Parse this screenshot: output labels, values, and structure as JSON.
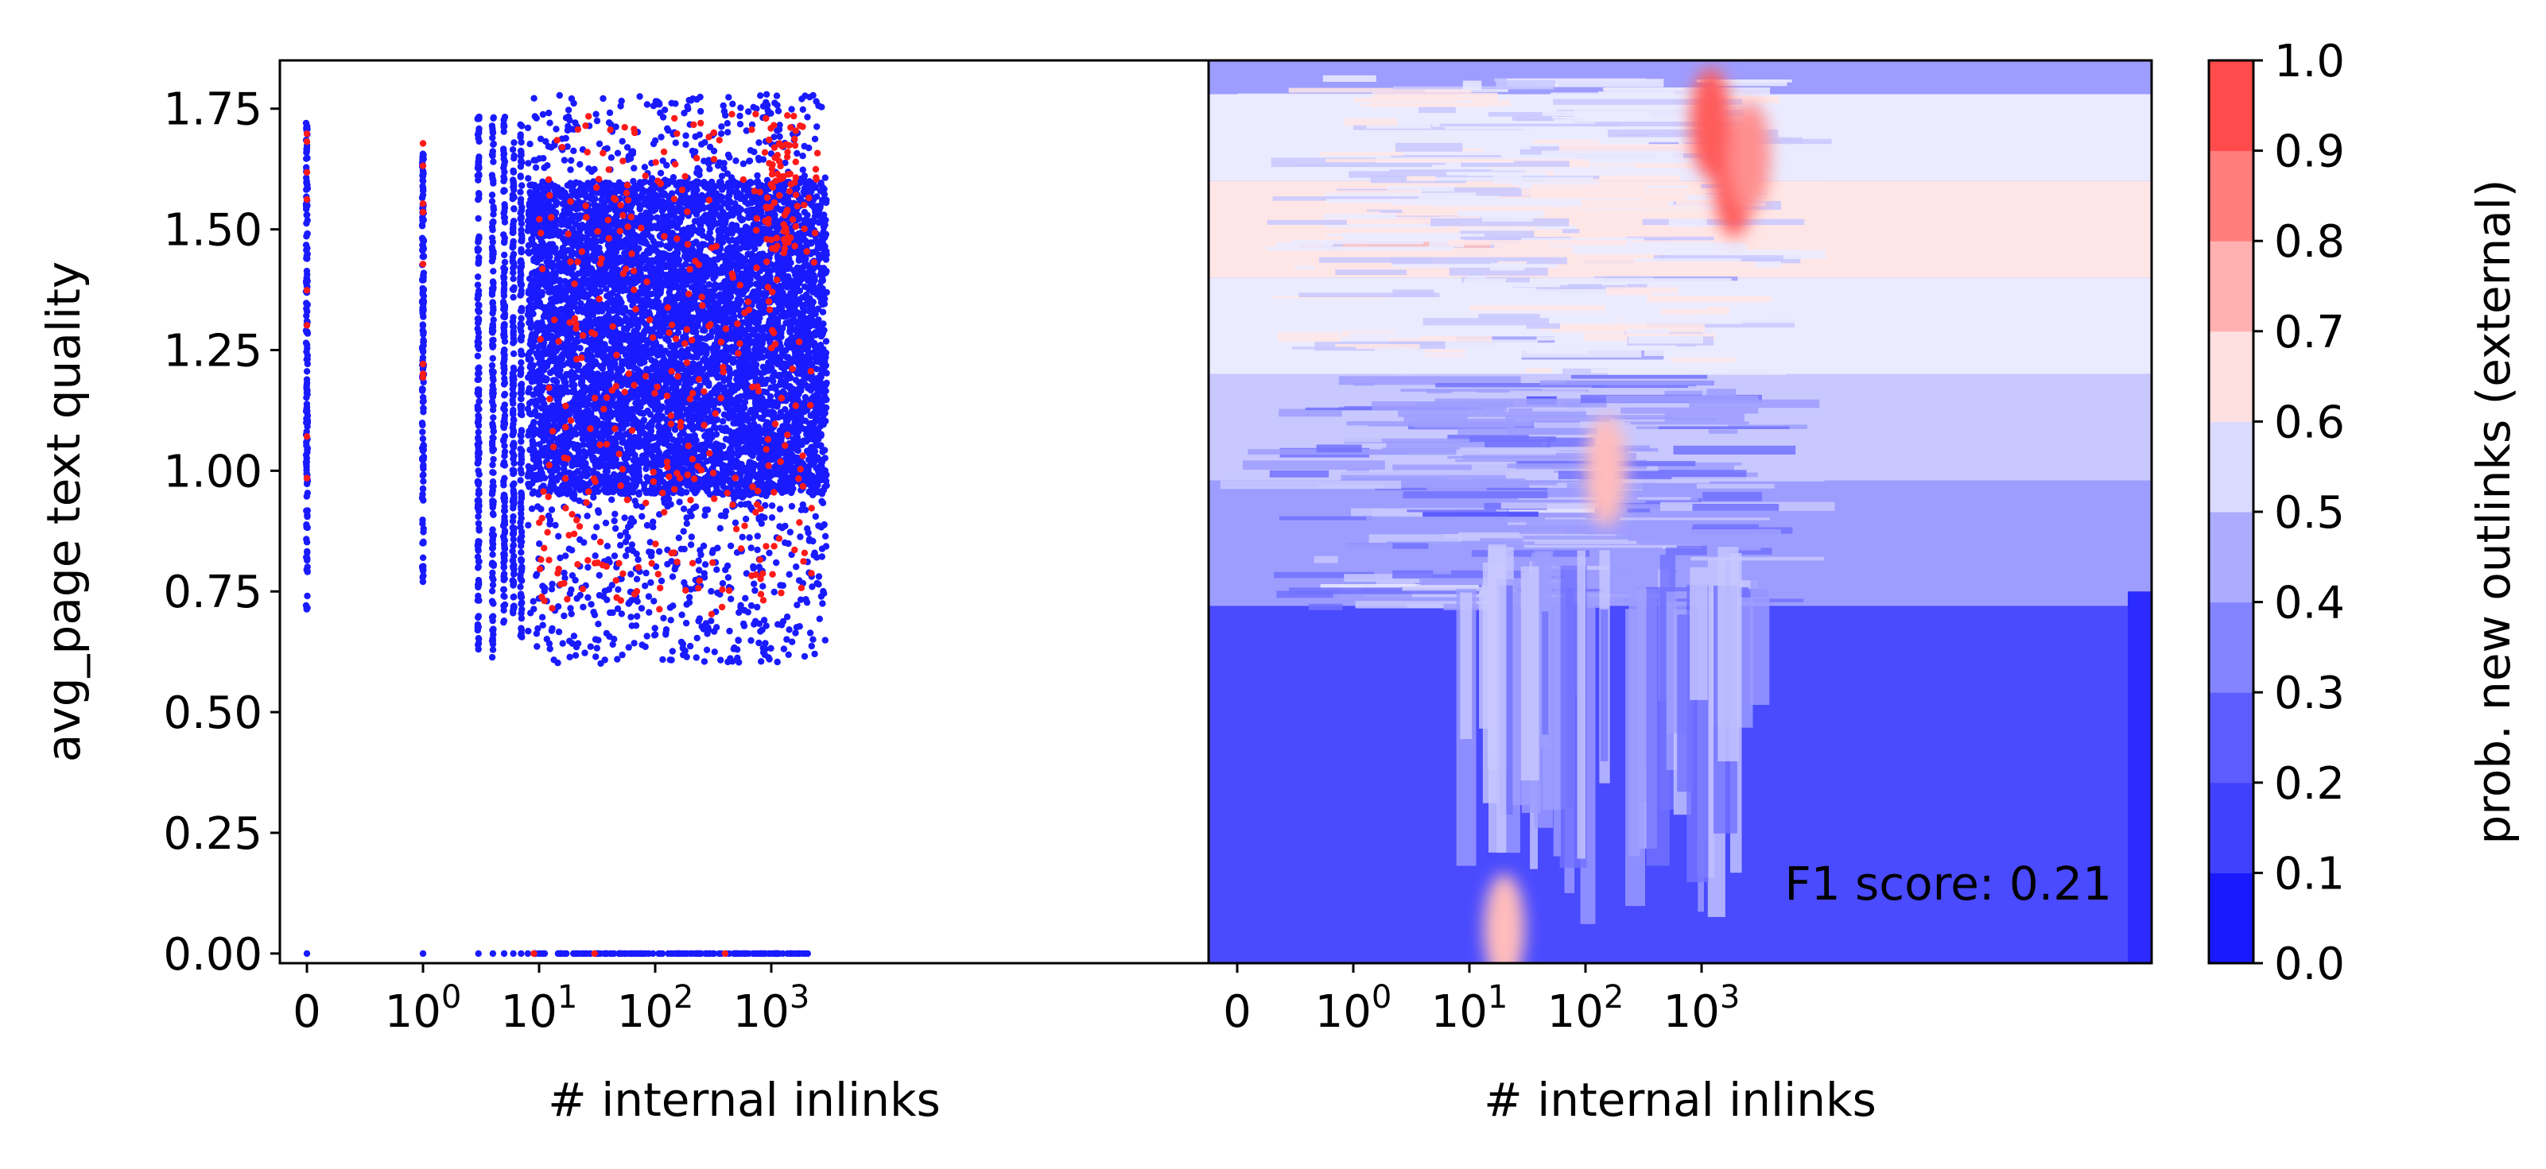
{
  "colors": {
    "blue": "#1a1aff",
    "red": "#ff1a1a",
    "axis": "#000000",
    "colorbar_levels": [
      "#2b2bff",
      "#4a4aff",
      "#7272ff",
      "#9d9dff",
      "#c8c8ff",
      "#ebebff",
      "#ffe6e6",
      "#ffbcbc",
      "#ff8f8f",
      "#ff5c5c",
      "#ff2626"
    ]
  },
  "chart_data": [
    {
      "type": "scatter",
      "xlabel": "# internal inlinks",
      "ylabel": "avg_page text quality",
      "xscale": "symlog",
      "xticks": [
        {
          "value": 0,
          "base": "0",
          "exp": ""
        },
        {
          "value": 1,
          "base": "10",
          "exp": "0"
        },
        {
          "value": 10,
          "base": "10",
          "exp": "1"
        },
        {
          "value": 100,
          "base": "10",
          "exp": "2"
        },
        {
          "value": 1000,
          "base": "10",
          "exp": "3"
        }
      ],
      "ylim": [
        -0.02,
        1.85
      ],
      "yticks": [
        "0.00",
        "0.25",
        "0.50",
        "0.75",
        "1.00",
        "1.25",
        "1.50",
        "1.75"
      ],
      "series": [
        {
          "color": "blue",
          "columns": [
            {
              "x": 0,
              "ymin": 0.7,
              "ymax": 1.72
            },
            {
              "x": 1,
              "ymin": 0.77,
              "ymax": 1.66
            },
            {
              "x": 3,
              "ymin": 0.63,
              "ymax": 1.75
            },
            {
              "x": 4,
              "ymin": 0.6,
              "ymax": 1.74
            },
            {
              "x": 5,
              "ymin": 0.68,
              "ymax": 1.74
            },
            {
              "x": 6,
              "ymin": 0.7,
              "ymax": 1.68
            },
            {
              "x": 7,
              "ymin": 0.65,
              "ymax": 1.72
            }
          ],
          "zero_row": {
            "y": 0.0,
            "points_x": [
              0,
              1,
              3,
              4,
              5,
              6,
              7,
              8
            ],
            "xmin": 9,
            "xmax": 2100
          },
          "cloud": {
            "xmin": 8,
            "xmax": 3000,
            "ymin": 0.6,
            "ymax": 1.78,
            "core_ymin": 0.95,
            "core_ymax": 1.6
          }
        },
        {
          "color": "red",
          "columns": [
            {
              "x": 0,
              "ymin": 0.95,
              "ymax": 1.74
            },
            {
              "x": 1,
              "ymin": 0.98,
              "ymax": 1.72
            }
          ],
          "cloud": {
            "xmin": 10,
            "xmax": 2500,
            "ymin": 0.7,
            "ymax": 1.74
          },
          "dense_spot": {
            "x": 1200,
            "ymin": 1.45,
            "ymax": 1.75
          }
        }
      ]
    },
    {
      "type": "heatmap",
      "xlabel": "# internal inlinks",
      "xscale": "symlog",
      "xticks": [
        {
          "value": 0,
          "base": "0",
          "exp": ""
        },
        {
          "value": 1,
          "base": "10",
          "exp": "0"
        },
        {
          "value": 10,
          "base": "10",
          "exp": "1"
        },
        {
          "value": 100,
          "base": "10",
          "exp": "2"
        },
        {
          "value": 1000,
          "base": "10",
          "exp": "3"
        }
      ],
      "ylim": [
        -0.02,
        1.85
      ],
      "annotation": "F1 score: 0.21",
      "colorbar": {
        "label": "prob. new outlinks (external)",
        "min": 0.0,
        "max": 1.0,
        "ticks": [
          "0.0",
          "0.1",
          "0.2",
          "0.3",
          "0.4",
          "0.5",
          "0.6",
          "0.7",
          "0.8",
          "0.9",
          "1.0"
        ]
      },
      "bands": [
        {
          "ymin": 1.78,
          "ymax": 1.85,
          "level": 3
        },
        {
          "ymin": 1.6,
          "ymax": 1.78,
          "level": 5
        },
        {
          "ymin": 1.4,
          "ymax": 1.6,
          "level": 6
        },
        {
          "ymin": 1.2,
          "ymax": 1.4,
          "level": 5
        },
        {
          "ymin": 0.98,
          "ymax": 1.2,
          "level": 4
        },
        {
          "ymin": 0.72,
          "ymax": 0.98,
          "level": 3
        },
        {
          "ymin": -0.02,
          "ymax": 0.72,
          "level": 1
        }
      ],
      "hotspots": [
        {
          "x": 1200,
          "y": 1.72,
          "level": 9
        },
        {
          "x": 1900,
          "y": 1.6,
          "level": 9
        },
        {
          "x": 2600,
          "y": 1.65,
          "level": 8
        },
        {
          "x": 20,
          "y": 0.05,
          "level": 7
        },
        {
          "x": 150,
          "y": 1.0,
          "level": 7
        }
      ]
    }
  ]
}
